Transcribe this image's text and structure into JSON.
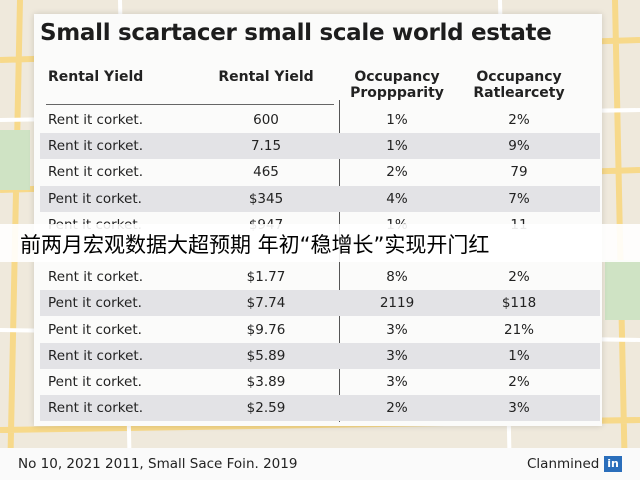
{
  "title": "Small scartacer small scale world estate",
  "table": {
    "headers": [
      [
        "Rental Yield"
      ],
      [
        "Rental Yield"
      ],
      [
        "Occupancy",
        "Proppparity"
      ],
      [
        "Occupancy",
        "Ratlearcety"
      ]
    ],
    "rows": [
      [
        "Rent it corket.",
        "600",
        "1%",
        "2%"
      ],
      [
        "Rent it corket.",
        "7.15",
        "1%",
        "9%"
      ],
      [
        "Rent it corket.",
        "465",
        "2%",
        "79"
      ],
      [
        "Pent it corket.",
        "$345",
        "4%",
        "7%"
      ],
      [
        "Pent it corket.",
        "$947",
        "1%",
        "11"
      ],
      [
        "Rent it corket.",
        "$1.77",
        "8%",
        "2%"
      ],
      [
        "Pent it corket.",
        "$7.74",
        "2119",
        "$118"
      ],
      [
        "Pent it corket.",
        "$9.76",
        "3%",
        "21%"
      ],
      [
        "Rent it corket.",
        "$5.89",
        "3%",
        "1%"
      ],
      [
        "Pent it corket.",
        "$3.89",
        "3%",
        "2%"
      ],
      [
        "Rent it corket.",
        "$2.59",
        "2%",
        "3%"
      ]
    ]
  },
  "caption": "前两月宏观数据大超预期 年初“稳增长”实现开门红",
  "footer": {
    "left": "No 10, 2021 2011, Small Sace Foin. 2019",
    "right": "Clanmined",
    "logo": "in"
  }
}
